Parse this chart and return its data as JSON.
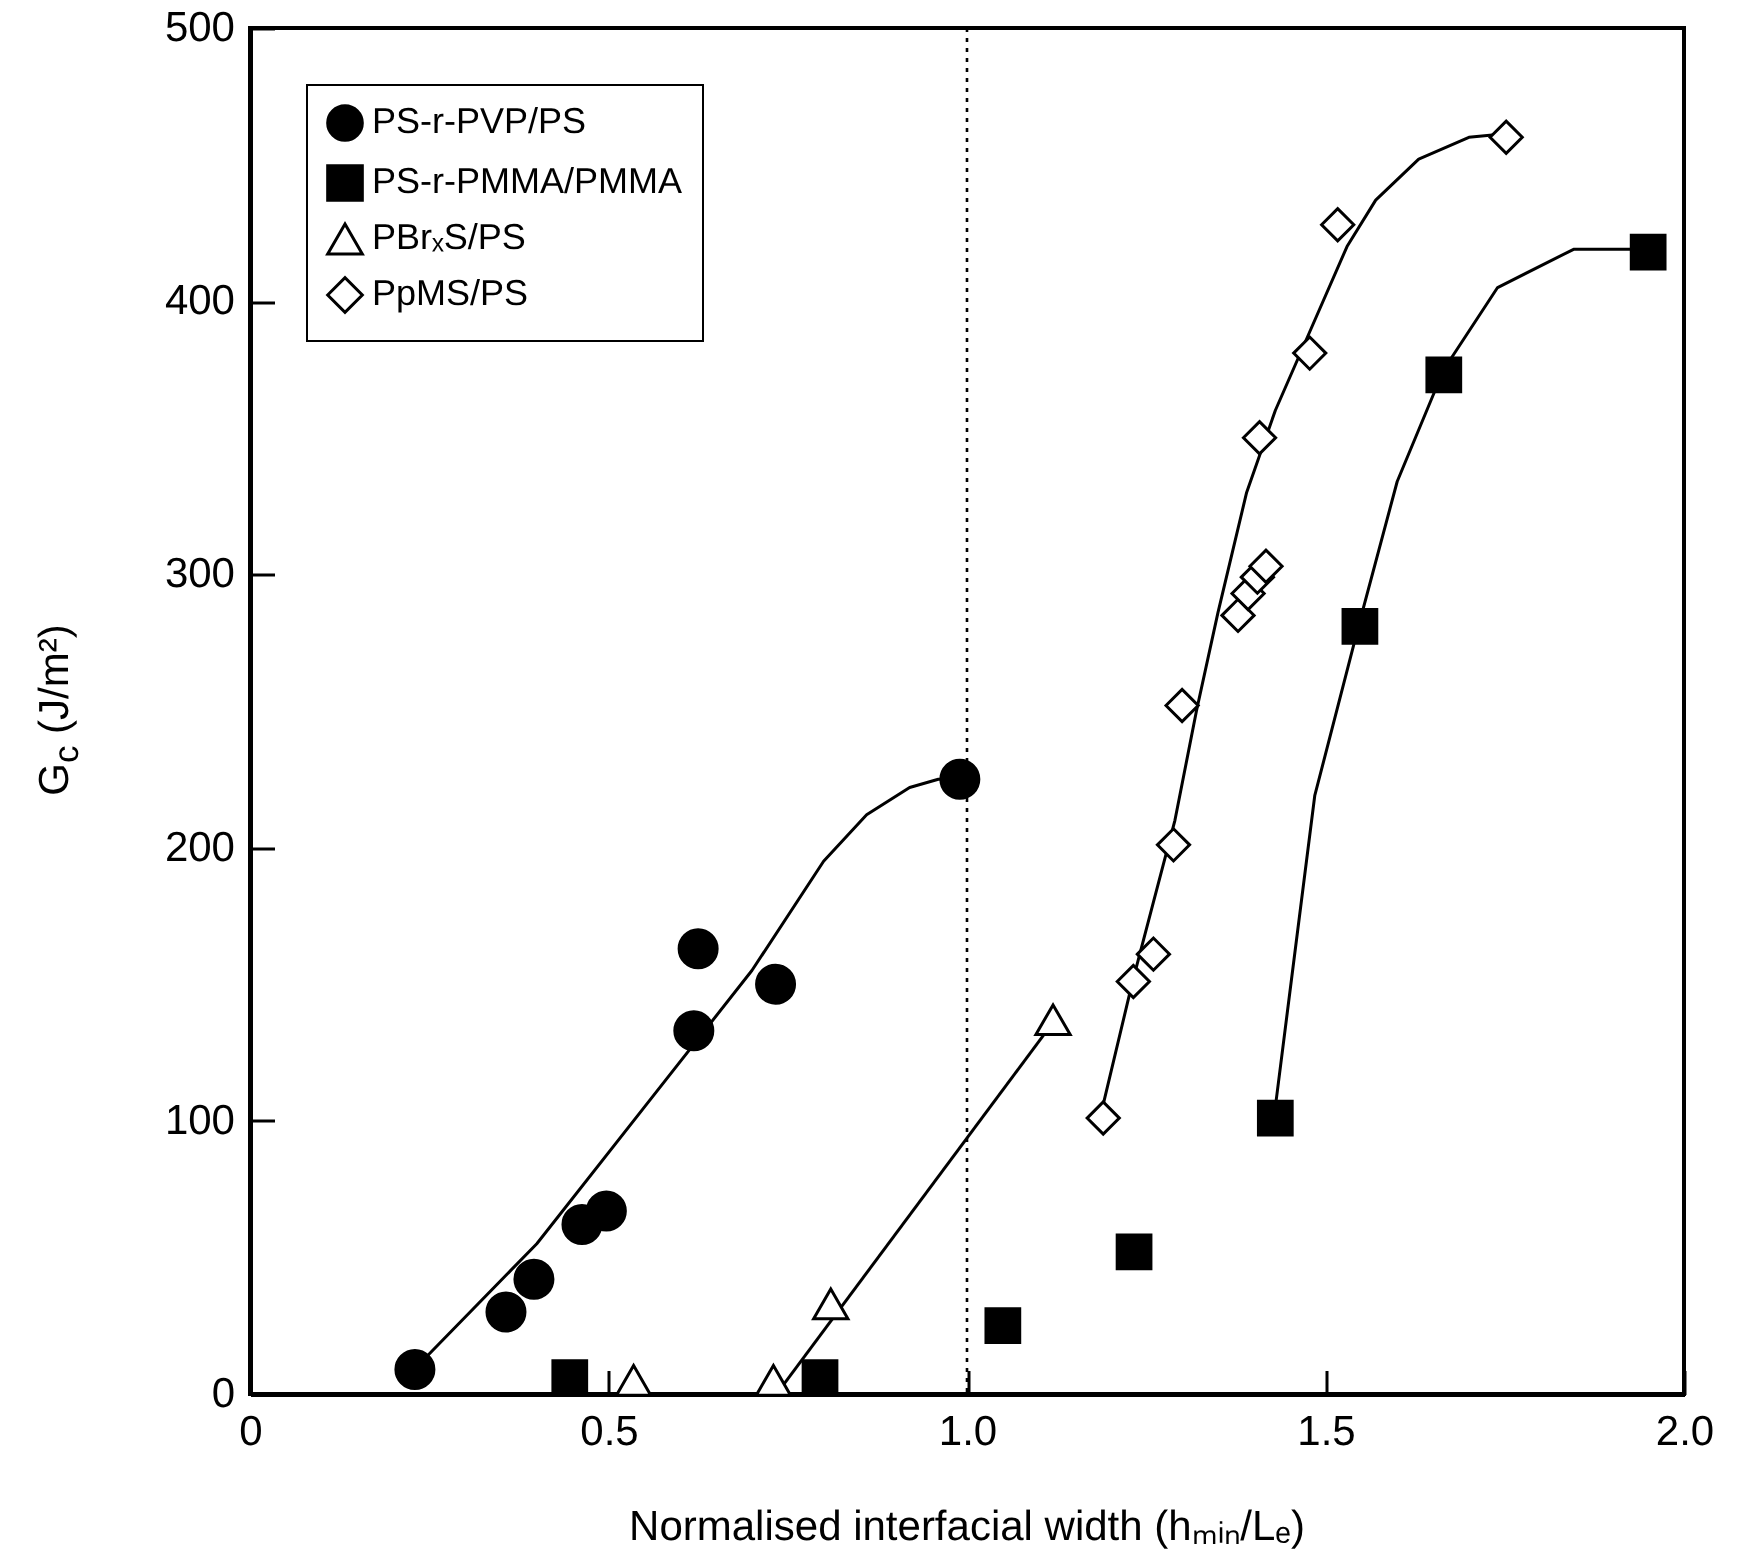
{
  "chart_data": {
    "type": "scatter",
    "xlabel": "Normalised interfacial width (hₘᵢₙ/Lₑ)",
    "ylabel": "G$_{c}$ (J/m²)",
    "xlim": [
      0,
      2
    ],
    "xticks": [
      0,
      0.5,
      {
        "value": 1,
        "label": "1.0"
      },
      1.5,
      {
        "value": 2,
        "label": "2.0"
      }
    ],
    "ylim": [
      0,
      500
    ],
    "yticks": [
      0,
      100,
      200,
      300,
      400,
      500
    ],
    "grid": false,
    "legend": "top left",
    "ref_lines": [
      {
        "axis": "x",
        "value": 1,
        "line_style": "dotted",
        "color": "#000000"
      }
    ],
    "series": [
      {
        "name": "PS-r-PVP/PS",
        "type": "scatter",
        "marker": "circle",
        "color": "#000000",
        "x": [
          0.23,
          0.357,
          0.396,
          0.463,
          0.497,
          0.619,
          0.625,
          0.733,
          0.99
        ],
        "values": [
          9,
          30,
          42,
          62,
          67,
          133,
          163,
          150,
          225
        ]
      },
      {
        "name": "PS-r-PMMA/PMMA",
        "type": "scatter",
        "marker": "square",
        "color": "#000000",
        "x": [
          0.446,
          0.795,
          1.05,
          1.233,
          1.43,
          1.548,
          1.665,
          1.95
        ],
        "values": [
          6,
          6,
          25,
          52,
          101,
          281,
          373,
          418
        ]
      },
      {
        "name": "PBrₓS/PS",
        "type": "scatter",
        "marker": "triangle",
        "color": "#ffffff",
        "x": [
          0.535,
          0.73,
          0.81,
          1.12
        ],
        "values": [
          5,
          5,
          33,
          137
        ]
      },
      {
        "name": "PpMS/PS",
        "type": "scatter",
        "marker": "diamond",
        "color": "#ffffff",
        "x": [
          1.19,
          1.232,
          1.26,
          1.288,
          1.3,
          1.378,
          1.392,
          1.405,
          1.417,
          1.408,
          1.478,
          1.517,
          1.752
        ],
        "values": [
          101,
          151,
          161,
          201,
          252,
          285,
          293,
          299,
          303,
          350,
          381,
          428,
          460
        ]
      },
      {
        "type": "line",
        "color": "#000000",
        "x": [
          0.24,
          0.4,
          0.55,
          0.7,
          0.8,
          0.86,
          0.92,
          0.96,
          0.99
        ],
        "values": [
          12,
          55,
          105,
          155,
          195,
          212,
          222,
          225,
          225
        ]
      },
      {
        "type": "line",
        "color": "#000000",
        "x": [
          0.74,
          1.12
        ],
        "values": [
          2,
          136
        ]
      },
      {
        "type": "line",
        "color": "#000000",
        "x": [
          1.19,
          1.23,
          1.26,
          1.29,
          1.32,
          1.35,
          1.39,
          1.43,
          1.48,
          1.53,
          1.57,
          1.63,
          1.7,
          1.74
        ],
        "values": [
          106,
          150,
          180,
          210,
          250,
          286,
          330,
          360,
          390,
          420,
          437,
          452,
          460,
          461
        ]
      },
      {
        "type": "line",
        "color": "#000000",
        "x": [
          1.43,
          1.485,
          1.548,
          1.6,
          1.665,
          1.74,
          1.846,
          1.95
        ],
        "values": [
          105,
          219,
          283,
          334,
          375,
          405,
          419,
          419
        ]
      }
    ]
  }
}
